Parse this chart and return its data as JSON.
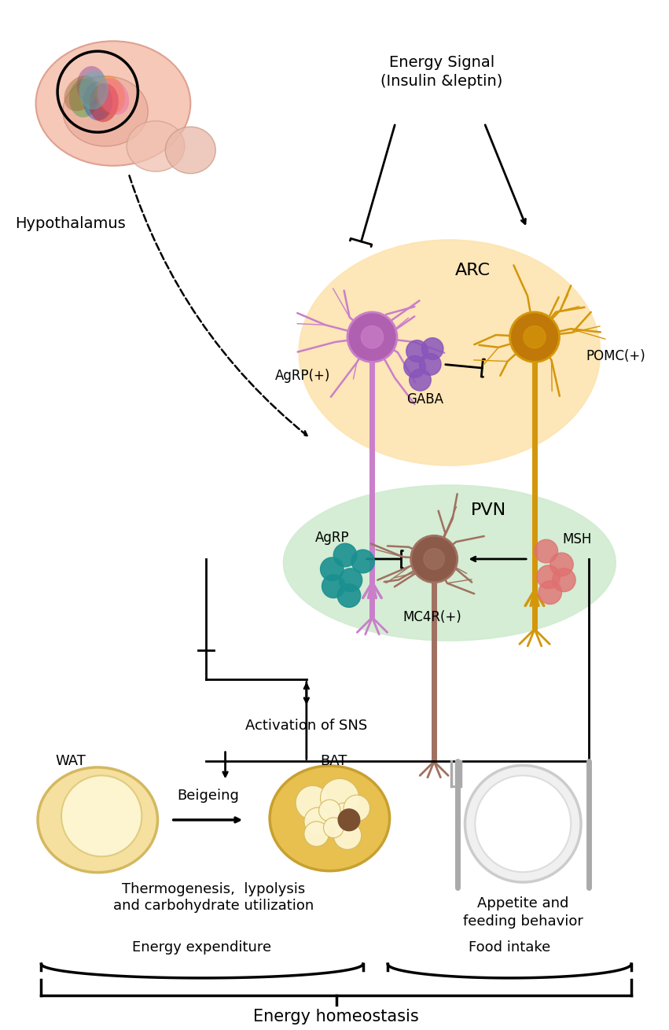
{
  "background_color": "#ffffff",
  "energy_signal_text": "Energy Signal\n(Insulin &leptin)",
  "arc_label": "ARC",
  "pvn_label": "PVN",
  "agrp_label_arc": "AgRP(+)",
  "pomc_label": "POMC(+)",
  "gaba_label": "GABA",
  "agrp_label_pvn": "AgRP",
  "msh_label": "MSH",
  "mc4r_label": "MC4R(+)",
  "hypothalamus_label": "Hypothalamus",
  "activation_sns": "Activation of SNS",
  "wat_label": "WAT",
  "bat_label": "BAT",
  "beigeing_label": "Beigeing",
  "thermo_label": "Thermogenesis,  lypolysis\nand carbohydrate utilization",
  "appetite_label": "Appetite and\nfeeding behavior",
  "energy_exp_label": "Energy expenditure",
  "food_intake_label": "Food intake",
  "homeostasis_label": "Energy homeostasis",
  "agrp_neuron_color": "#c97fc9",
  "agrp_neuron_soma": "#b060b0",
  "pomc_neuron_color": "#d4960a",
  "pomc_neuron_soma": "#c07808",
  "mc4r_neuron_color": "#a07060",
  "mc4r_neuron_soma": "#8b5a48",
  "gaba_dot_color": "#8855bb",
  "agrp_dot_color": "#1a9090",
  "msh_dot_color": "#e07070",
  "arc_color": "#fde4b0",
  "pvn_color": "#d0ecd0",
  "arrow_color": "#222222"
}
